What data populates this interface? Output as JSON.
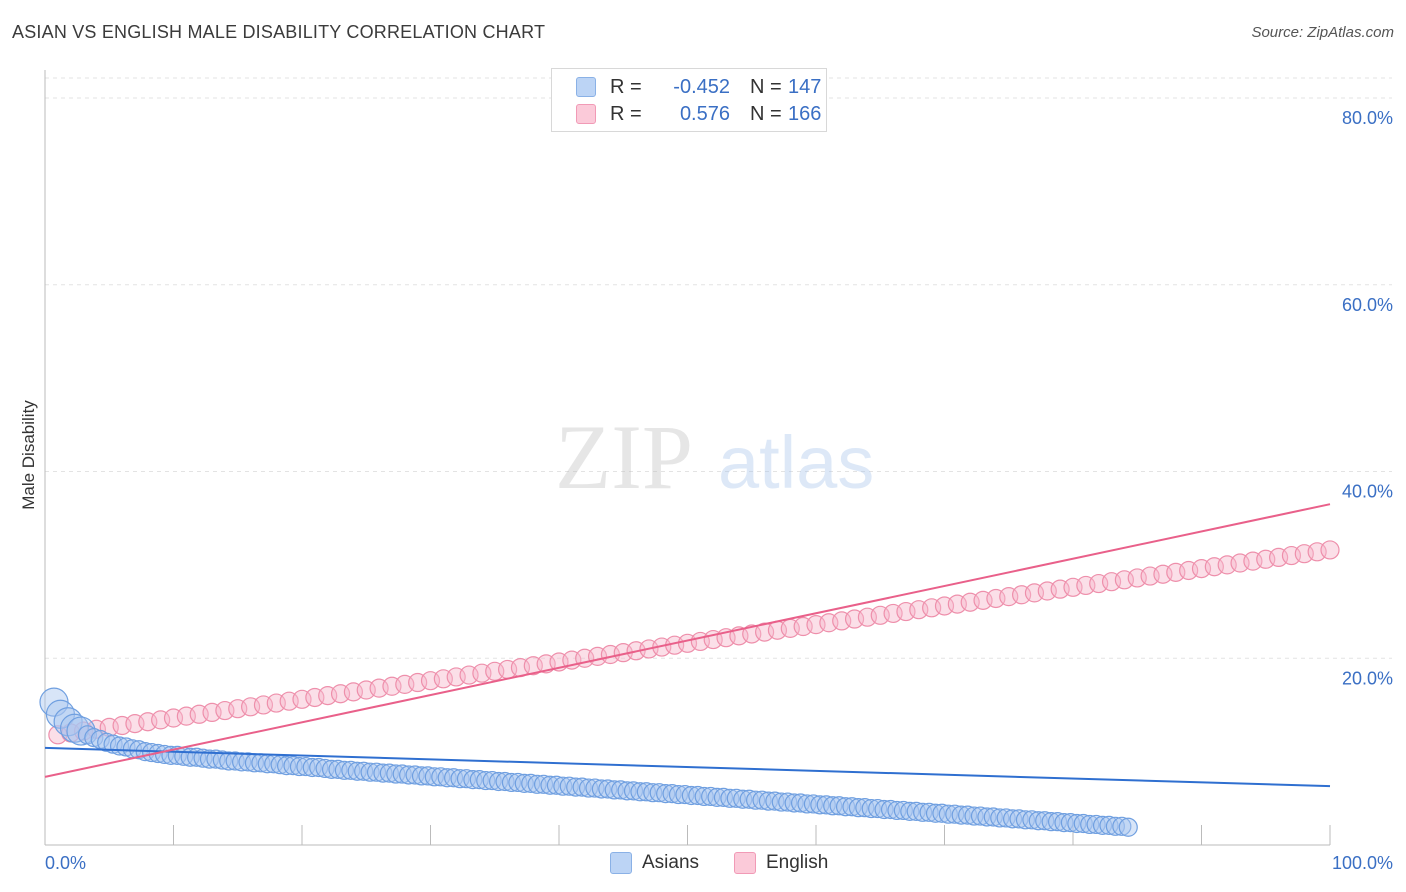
{
  "header": {
    "title": "ASIAN VS ENGLISH MALE DISABILITY CORRELATION CHART",
    "source": "Source: ZipAtlas.com"
  },
  "legend": {
    "rows": [
      {
        "r_label": "R =",
        "r_value": "-0.452",
        "n_label": "N =",
        "n_value": "147"
      },
      {
        "r_label": "R =",
        "r_value": "0.576",
        "n_label": "N =",
        "n_value": "166"
      }
    ]
  },
  "bottom_legend": {
    "asians": "Asians",
    "english": "English"
  },
  "watermark": {
    "zip": "ZIP",
    "atlas": "atlas"
  },
  "colors": {
    "asians_fill": "#a8c6f0",
    "asians_stroke": "#6f9fe0",
    "asians_line": "#2f6fd0",
    "english_fill": "#f6b9cb",
    "english_stroke": "#ee8fab",
    "english_line": "#e9608a",
    "axis_label": "#3a6fc4",
    "grid": "#e3e3e3"
  },
  "chart_data": {
    "type": "scatter",
    "title": "ASIAN VS ENGLISH MALE DISABILITY CORRELATION CHART",
    "xlabel": "",
    "ylabel": "Male Disability",
    "xlim": [
      0,
      100
    ],
    "ylim": [
      0,
      83
    ],
    "x_tick_labels": [
      "0.0%",
      "100.0%"
    ],
    "y_ticks": [
      20,
      40,
      60,
      80
    ],
    "y_tick_labels": [
      "20.0%",
      "40.0%",
      "60.0%",
      "80.0%"
    ],
    "grid": "horizontal dashed",
    "legend_placement": "top-center",
    "series": [
      {
        "name": "Asians",
        "trend": {
          "x": [
            0,
            100
          ],
          "y": [
            10.4,
            6.3
          ]
        },
        "points": [
          [
            0.7,
            15.3
          ],
          [
            1.2,
            14.0
          ],
          [
            1.8,
            13.2
          ],
          [
            2.3,
            12.5
          ],
          [
            2.8,
            12.2
          ],
          [
            3.3,
            11.8
          ],
          [
            3.8,
            11.5
          ],
          [
            4.3,
            11.3
          ],
          [
            4.8,
            11.0
          ],
          [
            5.3,
            10.8
          ],
          [
            5.8,
            10.6
          ],
          [
            6.3,
            10.5
          ],
          [
            6.8,
            10.3
          ],
          [
            7.3,
            10.2
          ],
          [
            7.8,
            10.0
          ],
          [
            8.3,
            9.9
          ],
          [
            8.8,
            9.8
          ],
          [
            9.3,
            9.7
          ],
          [
            9.8,
            9.6
          ],
          [
            10.3,
            9.6
          ],
          [
            10.8,
            9.5
          ],
          [
            11.3,
            9.4
          ],
          [
            11.8,
            9.4
          ],
          [
            12.3,
            9.3
          ],
          [
            12.8,
            9.2
          ],
          [
            13.3,
            9.2
          ],
          [
            13.8,
            9.1
          ],
          [
            14.3,
            9.0
          ],
          [
            14.8,
            9.0
          ],
          [
            15.3,
            8.9
          ],
          [
            15.8,
            8.9
          ],
          [
            16.3,
            8.8
          ],
          [
            16.8,
            8.8
          ],
          [
            17.3,
            8.7
          ],
          [
            17.8,
            8.7
          ],
          [
            18.3,
            8.6
          ],
          [
            18.8,
            8.5
          ],
          [
            19.3,
            8.5
          ],
          [
            19.8,
            8.4
          ],
          [
            20.3,
            8.4
          ],
          [
            20.8,
            8.3
          ],
          [
            21.3,
            8.3
          ],
          [
            21.8,
            8.2
          ],
          [
            22.3,
            8.1
          ],
          [
            22.8,
            8.1
          ],
          [
            23.3,
            8.0
          ],
          [
            23.8,
            8.0
          ],
          [
            24.3,
            7.9
          ],
          [
            24.8,
            7.9
          ],
          [
            25.3,
            7.8
          ],
          [
            25.8,
            7.8
          ],
          [
            26.3,
            7.7
          ],
          [
            26.8,
            7.7
          ],
          [
            27.3,
            7.6
          ],
          [
            27.8,
            7.6
          ],
          [
            28.3,
            7.5
          ],
          [
            28.8,
            7.5
          ],
          [
            29.3,
            7.4
          ],
          [
            29.8,
            7.4
          ],
          [
            30.3,
            7.3
          ],
          [
            30.8,
            7.3
          ],
          [
            31.3,
            7.2
          ],
          [
            31.8,
            7.2
          ],
          [
            32.3,
            7.1
          ],
          [
            32.8,
            7.1
          ],
          [
            33.3,
            7.0
          ],
          [
            33.8,
            7.0
          ],
          [
            34.3,
            6.9
          ],
          [
            34.8,
            6.9
          ],
          [
            35.3,
            6.8
          ],
          [
            35.8,
            6.8
          ],
          [
            36.3,
            6.7
          ],
          [
            36.8,
            6.7
          ],
          [
            37.3,
            6.6
          ],
          [
            37.8,
            6.6
          ],
          [
            38.3,
            6.5
          ],
          [
            38.8,
            6.5
          ],
          [
            39.3,
            6.4
          ],
          [
            39.8,
            6.4
          ],
          [
            40.3,
            6.3
          ],
          [
            40.8,
            6.3
          ],
          [
            41.3,
            6.2
          ],
          [
            41.8,
            6.2
          ],
          [
            42.3,
            6.1
          ],
          [
            42.8,
            6.1
          ],
          [
            43.3,
            6.0
          ],
          [
            43.8,
            6.0
          ],
          [
            44.3,
            5.9
          ],
          [
            44.8,
            5.9
          ],
          [
            45.3,
            5.8
          ],
          [
            45.8,
            5.8
          ],
          [
            46.3,
            5.7
          ],
          [
            46.8,
            5.7
          ],
          [
            47.3,
            5.6
          ],
          [
            47.8,
            5.6
          ],
          [
            48.3,
            5.5
          ],
          [
            48.8,
            5.5
          ],
          [
            49.3,
            5.4
          ],
          [
            49.8,
            5.4
          ],
          [
            50.3,
            5.3
          ],
          [
            50.8,
            5.3
          ],
          [
            51.3,
            5.2
          ],
          [
            51.8,
            5.2
          ],
          [
            52.3,
            5.1
          ],
          [
            52.8,
            5.1
          ],
          [
            53.3,
            5.0
          ],
          [
            53.8,
            5.0
          ],
          [
            54.3,
            4.9
          ],
          [
            54.8,
            4.9
          ],
          [
            55.3,
            4.8
          ],
          [
            55.8,
            4.8
          ],
          [
            56.3,
            4.7
          ],
          [
            56.8,
            4.7
          ],
          [
            57.3,
            4.6
          ],
          [
            57.8,
            4.6
          ],
          [
            58.3,
            4.5
          ],
          [
            58.8,
            4.5
          ],
          [
            59.3,
            4.4
          ],
          [
            59.8,
            4.4
          ],
          [
            60.3,
            4.3
          ],
          [
            60.8,
            4.3
          ],
          [
            61.3,
            4.2
          ],
          [
            61.8,
            4.2
          ],
          [
            62.3,
            4.1
          ],
          [
            62.8,
            4.1
          ],
          [
            63.3,
            4.0
          ],
          [
            63.8,
            4.0
          ],
          [
            64.3,
            3.9
          ],
          [
            64.8,
            3.9
          ],
          [
            65.3,
            3.8
          ],
          [
            65.8,
            3.8
          ],
          [
            66.3,
            3.7
          ],
          [
            66.8,
            3.7
          ],
          [
            67.3,
            3.6
          ],
          [
            67.8,
            3.6
          ],
          [
            68.3,
            3.5
          ],
          [
            68.8,
            3.5
          ],
          [
            69.3,
            3.4
          ],
          [
            69.8,
            3.4
          ],
          [
            70.3,
            3.3
          ],
          [
            70.8,
            3.3
          ],
          [
            71.3,
            3.2
          ],
          [
            71.8,
            3.2
          ],
          [
            72.3,
            3.1
          ],
          [
            72.8,
            3.1
          ],
          [
            73.3,
            3.0
          ],
          [
            73.8,
            3.0
          ],
          [
            74.3,
            2.9
          ],
          [
            74.8,
            2.9
          ],
          [
            75.3,
            2.8
          ],
          [
            75.8,
            2.8
          ],
          [
            76.3,
            2.7
          ],
          [
            76.8,
            2.7
          ],
          [
            77.3,
            2.6
          ],
          [
            77.8,
            2.6
          ],
          [
            78.3,
            2.5
          ],
          [
            78.8,
            2.5
          ],
          [
            79.3,
            2.4
          ],
          [
            79.8,
            2.4
          ],
          [
            80.3,
            2.3
          ],
          [
            80.8,
            2.3
          ],
          [
            81.3,
            2.2
          ],
          [
            81.8,
            2.2
          ],
          [
            82.3,
            2.1
          ],
          [
            82.8,
            2.1
          ],
          [
            83.3,
            2.0
          ],
          [
            83.8,
            2.0
          ],
          [
            84.3,
            1.9
          ]
        ]
      },
      {
        "name": "English",
        "trend": {
          "x": [
            0,
            100
          ],
          "y": [
            7.3,
            36.5
          ]
        },
        "points": [
          [
            1.0,
            11.8
          ],
          [
            2.0,
            12.0
          ],
          [
            3.0,
            12.2
          ],
          [
            4.0,
            12.4
          ],
          [
            5.0,
            12.6
          ],
          [
            6.0,
            12.8
          ],
          [
            7.0,
            13.0
          ],
          [
            8.0,
            13.2
          ],
          [
            9.0,
            13.4
          ],
          [
            10.0,
            13.6
          ],
          [
            11.0,
            13.8
          ],
          [
            12.0,
            14.0
          ],
          [
            13.0,
            14.2
          ],
          [
            14.0,
            14.4
          ],
          [
            15.0,
            14.6
          ],
          [
            16.0,
            14.8
          ],
          [
            17.0,
            15.0
          ],
          [
            18.0,
            15.2
          ],
          [
            19.0,
            15.4
          ],
          [
            20.0,
            15.6
          ],
          [
            21.0,
            15.8
          ],
          [
            22.0,
            16.0
          ],
          [
            23.0,
            16.2
          ],
          [
            24.0,
            16.4
          ],
          [
            25.0,
            16.6
          ],
          [
            26.0,
            16.8
          ],
          [
            27.0,
            17.0
          ],
          [
            28.0,
            17.2
          ],
          [
            29.0,
            17.4
          ],
          [
            30.0,
            17.6
          ],
          [
            31.0,
            17.8
          ],
          [
            32.0,
            18.0
          ],
          [
            33.0,
            18.2
          ],
          [
            34.0,
            18.4
          ],
          [
            35.0,
            18.6
          ],
          [
            36.0,
            18.8
          ],
          [
            37.0,
            19.0
          ],
          [
            38.0,
            19.2
          ],
          [
            39.0,
            19.4
          ],
          [
            40.0,
            19.6
          ],
          [
            41.0,
            19.8
          ],
          [
            42.0,
            20.0
          ],
          [
            43.0,
            20.2
          ],
          [
            44.0,
            20.4
          ],
          [
            45.0,
            20.6
          ],
          [
            46.0,
            20.8
          ],
          [
            47.0,
            21.0
          ],
          [
            48.0,
            21.2
          ],
          [
            49.0,
            21.4
          ],
          [
            50.0,
            21.6
          ],
          [
            51.0,
            21.8
          ],
          [
            52.0,
            22.0
          ],
          [
            53.0,
            22.2
          ],
          [
            54.0,
            22.4
          ],
          [
            55.0,
            22.6
          ],
          [
            56.0,
            22.8
          ],
          [
            57.0,
            23.0
          ],
          [
            58.0,
            23.2
          ],
          [
            59.0,
            23.4
          ],
          [
            60.0,
            23.6
          ],
          [
            61.0,
            23.8
          ],
          [
            62.0,
            24.0
          ],
          [
            63.0,
            24.2
          ],
          [
            64.0,
            24.4
          ],
          [
            65.0,
            24.6
          ],
          [
            66.0,
            24.8
          ],
          [
            67.0,
            25.0
          ],
          [
            68.0,
            25.2
          ],
          [
            69.0,
            25.4
          ],
          [
            70.0,
            25.6
          ],
          [
            71.0,
            25.8
          ],
          [
            72.0,
            26.0
          ],
          [
            73.0,
            26.2
          ],
          [
            74.0,
            26.4
          ],
          [
            75.0,
            26.6
          ],
          [
            76.0,
            26.8
          ],
          [
            77.0,
            27.0
          ],
          [
            78.0,
            27.2
          ],
          [
            79.0,
            27.4
          ],
          [
            80.0,
            27.6
          ],
          [
            81.0,
            27.8
          ],
          [
            82.0,
            28.0
          ],
          [
            83.0,
            28.2
          ],
          [
            84.0,
            28.4
          ],
          [
            85.0,
            28.6
          ],
          [
            86.0,
            28.8
          ],
          [
            87.0,
            29.0
          ],
          [
            88.0,
            29.2
          ],
          [
            89.0,
            29.4
          ],
          [
            90.0,
            29.6
          ],
          [
            91.0,
            29.8
          ],
          [
            92.0,
            30.0
          ],
          [
            93.0,
            30.2
          ],
          [
            94.0,
            30.4
          ],
          [
            95.0,
            30.6
          ],
          [
            96.0,
            30.8
          ],
          [
            97.0,
            31.0
          ],
          [
            98.0,
            31.2
          ],
          [
            99.0,
            31.4
          ],
          [
            100.0,
            31.6
          ]
        ]
      }
    ]
  }
}
